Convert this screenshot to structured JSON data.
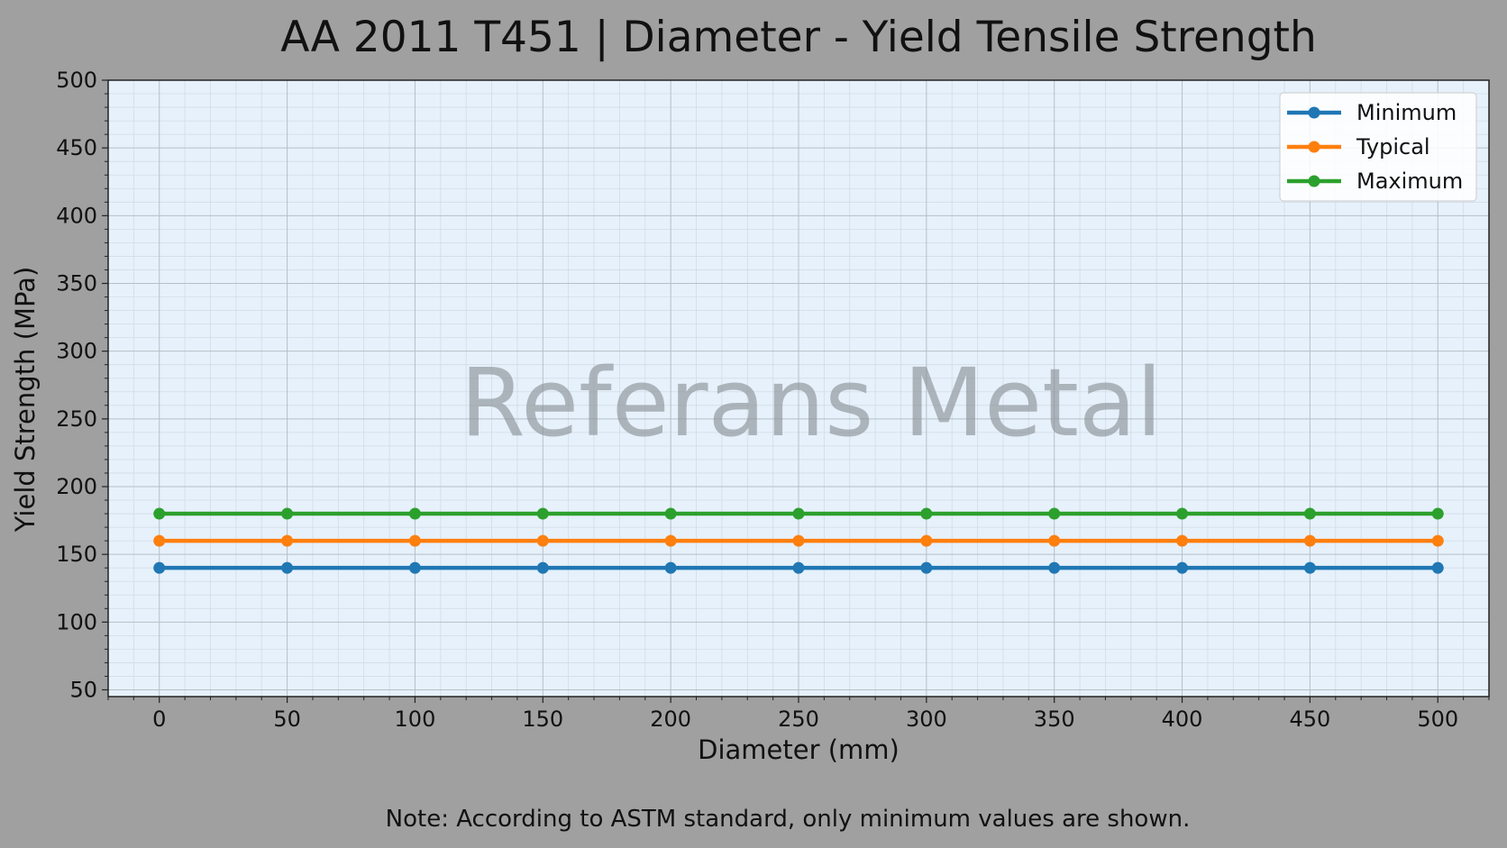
{
  "chart_data": {
    "type": "line",
    "title": "AA 2011 T451 | Diameter - Yield Tensile Strength",
    "xlabel": "Diameter (mm)",
    "ylabel": "Yield Strength (MPa)",
    "x": [
      0,
      50,
      100,
      150,
      200,
      250,
      300,
      350,
      400,
      450,
      500
    ],
    "xlim": [
      -20,
      520
    ],
    "ylim": [
      45,
      500
    ],
    "xticks": [
      0,
      50,
      100,
      150,
      200,
      250,
      300,
      350,
      400,
      450,
      500
    ],
    "yticks": [
      50,
      100,
      150,
      200,
      250,
      300,
      350,
      400,
      450,
      500
    ],
    "grid": true,
    "legend_position": "top-right",
    "series": [
      {
        "name": "Minimum",
        "color": "#1f77b4",
        "values": [
          140,
          140,
          140,
          140,
          140,
          140,
          140,
          140,
          140,
          140,
          140
        ]
      },
      {
        "name": "Typical",
        "color": "#ff7f0e",
        "values": [
          160,
          160,
          160,
          160,
          160,
          160,
          160,
          160,
          160,
          160,
          160
        ]
      },
      {
        "name": "Maximum",
        "color": "#2ca02c",
        "values": [
          180,
          180,
          180,
          180,
          180,
          180,
          180,
          180,
          180,
          180,
          180
        ]
      }
    ],
    "watermark": "Referans Metal",
    "note": "Note: According to ASTM standard, only minimum values are shown."
  }
}
